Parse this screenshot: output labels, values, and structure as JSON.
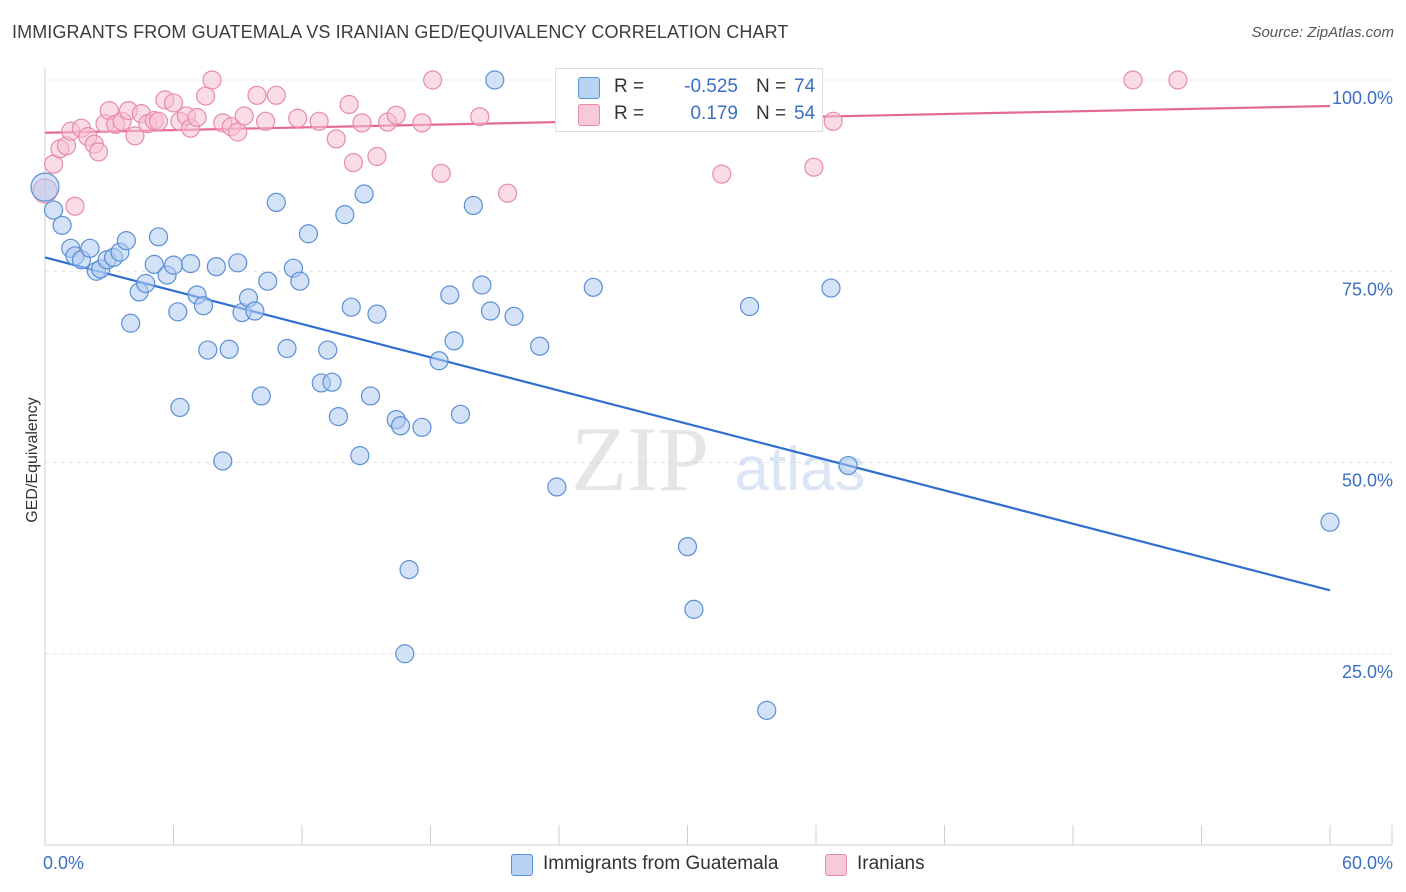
{
  "title": "IMMIGRANTS FROM GUATEMALA VS IRANIAN GED/EQUIVALENCY CORRELATION CHART",
  "source": "Source: ZipAtlas.com",
  "watermark": {
    "zip": "ZIP",
    "atlas": "atlas"
  },
  "legend": {
    "r_label": "R =",
    "n_label": "N =",
    "series": [
      {
        "r": "-0.525",
        "n": "74"
      },
      {
        "r": "0.179",
        "n": "54"
      }
    ]
  },
  "colors": {
    "blue_fill": "#aecbf0",
    "blue_stroke": "#5b8fd6",
    "blue_line": "#2f6fd0",
    "pink_fill": "#f6bfd2",
    "pink_stroke": "#e88aab",
    "pink_line": "#e46a92",
    "axis_text": "#3b6fc4",
    "grid": "#e4e4e4"
  },
  "chart_data": {
    "type": "scatter",
    "title": "IMMIGRANTS FROM GUATEMALA VS IRANIAN GED/EQUIVALENCY CORRELATION CHART",
    "xlabel": "",
    "ylabel": "GED/Equivalency",
    "xlim": [
      0,
      60
    ],
    "ylim": [
      0,
      105
    ],
    "x_tick_labels": [
      "0.0%",
      "60.0%"
    ],
    "y_ticks": [
      25,
      50,
      75,
      100
    ],
    "y_tick_labels": [
      "25.0%",
      "50.0%",
      "75.0%",
      "100.0%"
    ],
    "grid": true,
    "legend_position": "top-center",
    "series": [
      {
        "name": "Immigrants from Guatemala",
        "color": "#5b8fd6",
        "trend": {
          "x": [
            0,
            60
          ],
          "y": [
            76.8,
            33.3
          ]
        },
        "points": [
          [
            0,
            86,
            14
          ],
          [
            0.4,
            83,
            9
          ],
          [
            0.8,
            81,
            9
          ],
          [
            1.2,
            78,
            9
          ],
          [
            1.4,
            77,
            9
          ],
          [
            1.7,
            76.5,
            9
          ],
          [
            2.1,
            78,
            9
          ],
          [
            2.4,
            75,
            9
          ],
          [
            2.6,
            75.3,
            9
          ],
          [
            2.9,
            76.5,
            9
          ],
          [
            3.2,
            76.8,
            9
          ],
          [
            3.5,
            77.5,
            9
          ],
          [
            3.8,
            79,
            9
          ],
          [
            4.0,
            68.2,
            9
          ],
          [
            4.4,
            72.3,
            9
          ],
          [
            4.7,
            73.4,
            9
          ],
          [
            5.1,
            75.9,
            9
          ],
          [
            5.3,
            79.5,
            9
          ],
          [
            5.7,
            74.5,
            9
          ],
          [
            6.0,
            75.8,
            9
          ],
          [
            6.2,
            69.7,
            9
          ],
          [
            6.3,
            57.2,
            9
          ],
          [
            6.8,
            76,
            9
          ],
          [
            7.1,
            71.9,
            9
          ],
          [
            7.4,
            70.5,
            9
          ],
          [
            7.6,
            64.7,
            9
          ],
          [
            8.0,
            75.6,
            9
          ],
          [
            8.3,
            50.2,
            9
          ],
          [
            8.6,
            64.8,
            9
          ],
          [
            9.0,
            76.1,
            9
          ],
          [
            9.2,
            69.6,
            9
          ],
          [
            9.5,
            71.5,
            9
          ],
          [
            9.8,
            69.8,
            9
          ],
          [
            10.1,
            58.7,
            9
          ],
          [
            10.4,
            73.7,
            9
          ],
          [
            10.8,
            84,
            9
          ],
          [
            11.3,
            64.9,
            9
          ],
          [
            11.6,
            75.4,
            9
          ],
          [
            11.9,
            73.7,
            9
          ],
          [
            12.3,
            79.9,
            9
          ],
          [
            12.9,
            60.4,
            9
          ],
          [
            13.2,
            64.7,
            9
          ],
          [
            13.4,
            60.5,
            9
          ],
          [
            13.7,
            56,
            9
          ],
          [
            14.0,
            82.4,
            9
          ],
          [
            14.3,
            70.3,
            9
          ],
          [
            14.7,
            50.9,
            9
          ],
          [
            14.9,
            85.1,
            9
          ],
          [
            15.2,
            58.7,
            9
          ],
          [
            15.5,
            69.4,
            9
          ],
          [
            16.4,
            55.6,
            9
          ],
          [
            16.6,
            54.8,
            9
          ],
          [
            16.8,
            25,
            9
          ],
          [
            17.0,
            36,
            9
          ],
          [
            17.6,
            54.6,
            9
          ],
          [
            18.4,
            63.3,
            9
          ],
          [
            18.9,
            71.9,
            9
          ],
          [
            19.1,
            65.9,
            9
          ],
          [
            19.4,
            56.3,
            9
          ],
          [
            20.0,
            83.6,
            9
          ],
          [
            20.4,
            73.2,
            9
          ],
          [
            20.8,
            69.8,
            9
          ],
          [
            21.0,
            100,
            9
          ],
          [
            21.9,
            69.1,
            9
          ],
          [
            23.1,
            65.2,
            9
          ],
          [
            23.9,
            46.8,
            9
          ],
          [
            25.6,
            72.9,
            9
          ],
          [
            30.0,
            39,
            9
          ],
          [
            30.3,
            30.8,
            9
          ],
          [
            32.9,
            70.4,
            9
          ],
          [
            33.7,
            17.6,
            9
          ],
          [
            36.7,
            72.8,
            9
          ],
          [
            37.5,
            49.6,
            9
          ],
          [
            60.0,
            42.2,
            9
          ]
        ]
      },
      {
        "name": "Iranians",
        "color": "#e88aab",
        "trend": {
          "x": [
            0,
            60
          ],
          "y": [
            93.1,
            96.6
          ]
        },
        "points": [
          [
            0,
            85.5,
            12
          ],
          [
            0.4,
            89,
            9
          ],
          [
            0.7,
            91,
            9
          ],
          [
            1.0,
            91.4,
            9
          ],
          [
            1.2,
            93.3,
            9
          ],
          [
            1.4,
            83.5,
            9
          ],
          [
            1.7,
            93.7,
            9
          ],
          [
            2.0,
            92.6,
            9
          ],
          [
            2.3,
            91.6,
            9
          ],
          [
            2.5,
            90.6,
            9
          ],
          [
            2.8,
            94.3,
            9
          ],
          [
            3.0,
            96,
            9
          ],
          [
            3.3,
            94.2,
            9
          ],
          [
            3.6,
            94.6,
            9
          ],
          [
            3.9,
            96,
            9
          ],
          [
            4.2,
            92.7,
            9
          ],
          [
            4.5,
            95.6,
            9
          ],
          [
            4.8,
            94.3,
            9
          ],
          [
            5.1,
            94.7,
            9
          ],
          [
            5.3,
            94.6,
            9
          ],
          [
            5.6,
            97.4,
            9
          ],
          [
            6.0,
            97,
            9
          ],
          [
            6.3,
            94.6,
            9
          ],
          [
            6.6,
            95.3,
            9
          ],
          [
            6.8,
            93.7,
            9
          ],
          [
            7.1,
            95.1,
            9
          ],
          [
            7.5,
            97.9,
            9
          ],
          [
            7.8,
            100,
            9
          ],
          [
            8.3,
            94.4,
            9
          ],
          [
            8.7,
            93.9,
            9
          ],
          [
            9.0,
            93.2,
            9
          ],
          [
            9.3,
            95.3,
            9
          ],
          [
            9.9,
            98,
            9
          ],
          [
            10.3,
            94.6,
            9
          ],
          [
            10.8,
            98,
            9
          ],
          [
            11.8,
            95,
            9
          ],
          [
            12.8,
            94.6,
            9
          ],
          [
            13.6,
            92.3,
            9
          ],
          [
            14.2,
            96.8,
            9
          ],
          [
            14.4,
            89.2,
            9
          ],
          [
            14.8,
            94.4,
            9
          ],
          [
            15.5,
            90,
            9
          ],
          [
            16.0,
            94.5,
            9
          ],
          [
            16.4,
            95.4,
            9
          ],
          [
            17.6,
            94.4,
            9
          ],
          [
            18.1,
            100,
            9
          ],
          [
            18.5,
            87.8,
            9
          ],
          [
            20.3,
            95.2,
            9
          ],
          [
            21.6,
            85.2,
            9
          ],
          [
            31.6,
            87.7,
            9
          ],
          [
            35.9,
            88.6,
            9
          ],
          [
            36.8,
            94.6,
            9
          ],
          [
            50.8,
            100,
            9
          ],
          [
            52.9,
            100,
            9
          ]
        ]
      }
    ]
  }
}
